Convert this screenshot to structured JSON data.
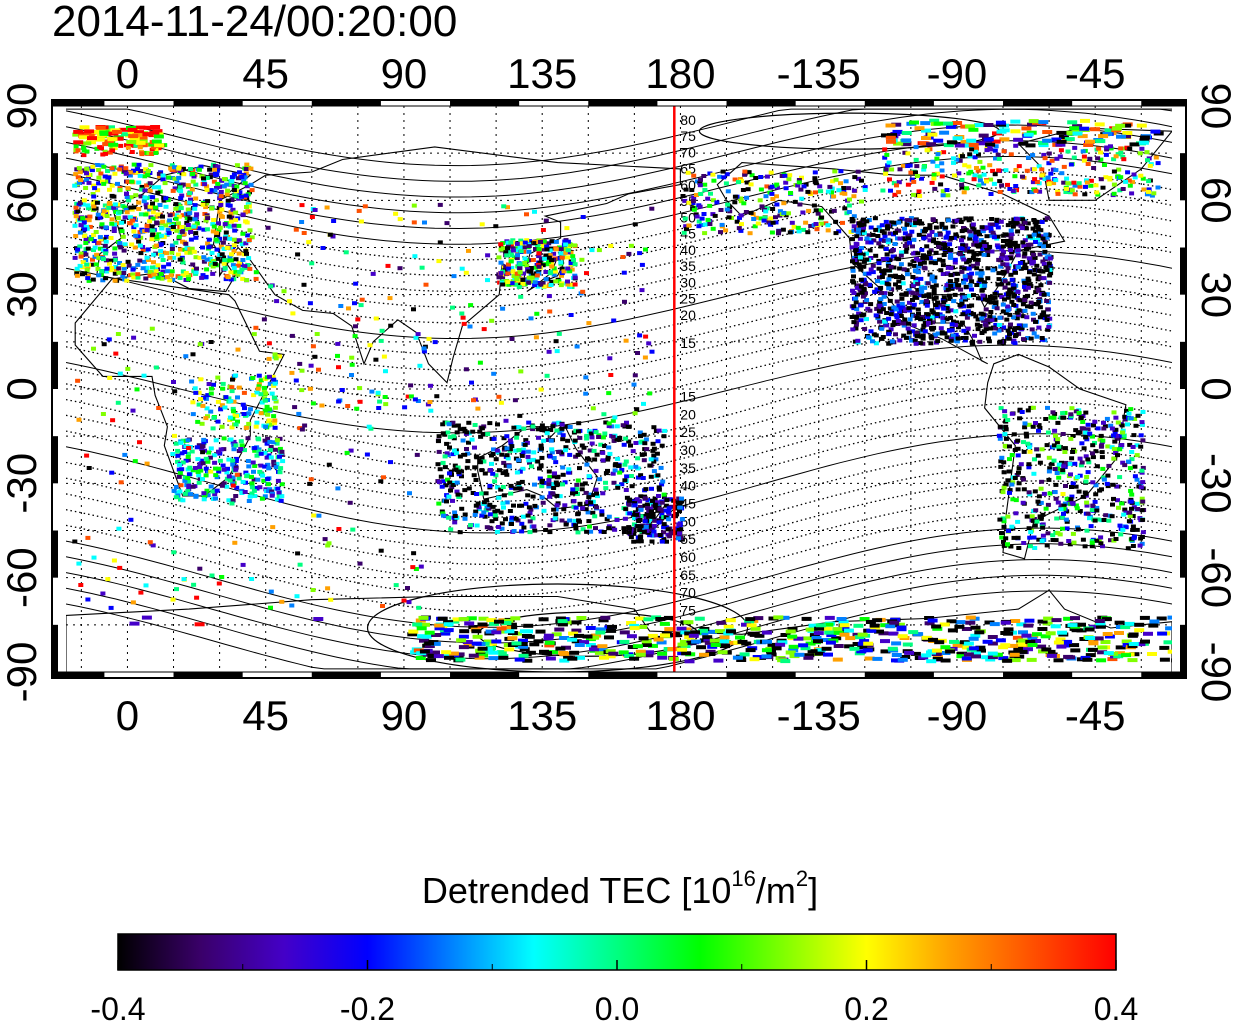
{
  "timestamp": "2014-11-24/00:20:00",
  "map": {
    "lon_ticks": [
      "0",
      "45",
      "90",
      "135",
      "180",
      "-135",
      "-90",
      "-45"
    ],
    "lat_ticks": [
      "90",
      "60",
      "30",
      "0",
      "-30",
      "-60",
      "-90"
    ],
    "lon_range": [
      -20,
      340
    ],
    "lat_range": [
      -90,
      90
    ],
    "marker_longitude": 178,
    "contour_labels_north": [
      "80",
      "75",
      "70",
      "65",
      "60",
      "55",
      "50",
      "45",
      "40",
      "35",
      "30",
      "25",
      "20",
      "15"
    ],
    "contour_labels_south": [
      "15",
      "20",
      "25",
      "30",
      "35",
      "40",
      "45",
      "50",
      "55",
      "60",
      "65",
      "70",
      "75"
    ]
  },
  "colorbar": {
    "title_main": "Detrended TEC  [10",
    "title_exp": "16",
    "title_mid": "/m",
    "title_exp2": "2",
    "title_end": "]",
    "ticks": [
      "-0.4",
      "-0.2",
      "0.0",
      "0.2",
      "0.4"
    ],
    "min": -0.4,
    "max": 0.4,
    "stops": [
      "#000000",
      "#3a006a",
      "#4400c8",
      "#0000ff",
      "#0080ff",
      "#00ffff",
      "#00ff80",
      "#00ff00",
      "#80ff00",
      "#ffff00",
      "#ffa000",
      "#ff5000",
      "#ff0000"
    ]
  },
  "colors": {
    "frame": "#000000",
    "marker_line": "#ff0000",
    "grid": "#000000"
  }
}
